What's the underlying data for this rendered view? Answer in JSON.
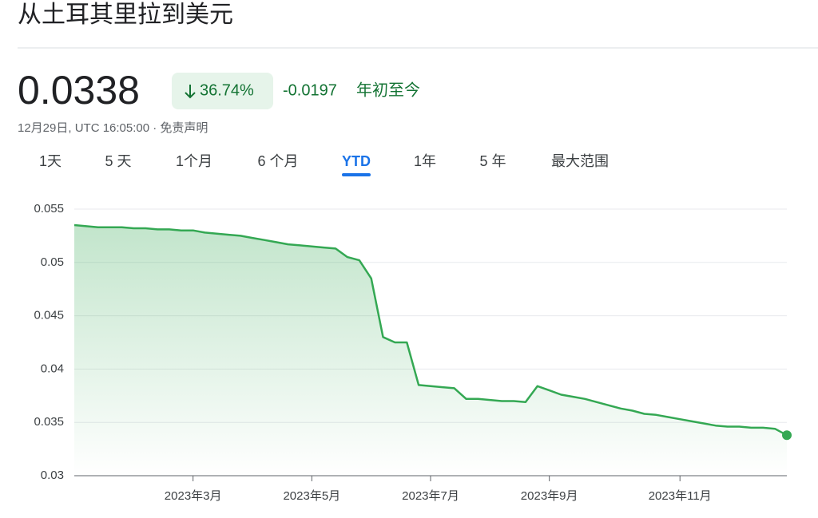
{
  "header": {
    "title": "从土耳其里拉到美元"
  },
  "quote": {
    "price": "0.0338",
    "change_percent": "36.74%",
    "change": "-0.0197",
    "period": "年初至今",
    "timestamp": "12月29日, UTC 16:05:00 · 免责声明"
  },
  "tabs": {
    "labels": [
      "1天",
      "5 天",
      "1个月",
      "6 个月",
      "YTD",
      "1年",
      "5 年",
      "最大范围"
    ],
    "active": 4
  },
  "chart_data": {
    "type": "line",
    "color": "#34a853",
    "categories": [
      null,
      null,
      null,
      null,
      null,
      null,
      null,
      null,
      null,
      null,
      "2023年3月",
      null,
      null,
      null,
      null,
      null,
      null,
      null,
      null,
      null,
      "2023年5月",
      null,
      null,
      null,
      null,
      null,
      null,
      null,
      null,
      null,
      "2023年7月",
      null,
      null,
      null,
      null,
      null,
      null,
      null,
      null,
      null,
      "2023年9月",
      null,
      null,
      null,
      null,
      null,
      null,
      null,
      null,
      null,
      null,
      "2023年11月",
      null,
      null,
      null,
      null,
      null,
      null,
      null,
      null,
      null
    ],
    "values": [
      0.0535,
      0.0534,
      0.0533,
      0.0533,
      0.0533,
      0.0532,
      0.0532,
      0.0531,
      0.0531,
      0.053,
      0.053,
      0.0528,
      0.0527,
      0.0526,
      0.0525,
      0.0523,
      0.0521,
      0.0519,
      0.0517,
      0.0516,
      0.0515,
      0.0514,
      0.0513,
      0.0505,
      0.0502,
      0.0485,
      0.043,
      0.0425,
      0.0425,
      0.0385,
      0.0384,
      0.0383,
      0.0382,
      0.0372,
      0.0372,
      0.0371,
      0.037,
      0.037,
      0.0369,
      0.0384,
      0.038,
      0.0376,
      0.0374,
      0.0372,
      0.0369,
      0.0366,
      0.0363,
      0.0361,
      0.0358,
      0.0357,
      0.0355,
      0.0353,
      0.0351,
      0.0349,
      0.0347,
      0.0346,
      0.0346,
      0.0345,
      0.0345,
      0.0344,
      0.0338
    ],
    "ylim": [
      0.03,
      0.055
    ],
    "yticks": [
      0.03,
      0.035,
      0.04,
      0.045,
      0.05,
      0.055
    ],
    "grid": true
  }
}
